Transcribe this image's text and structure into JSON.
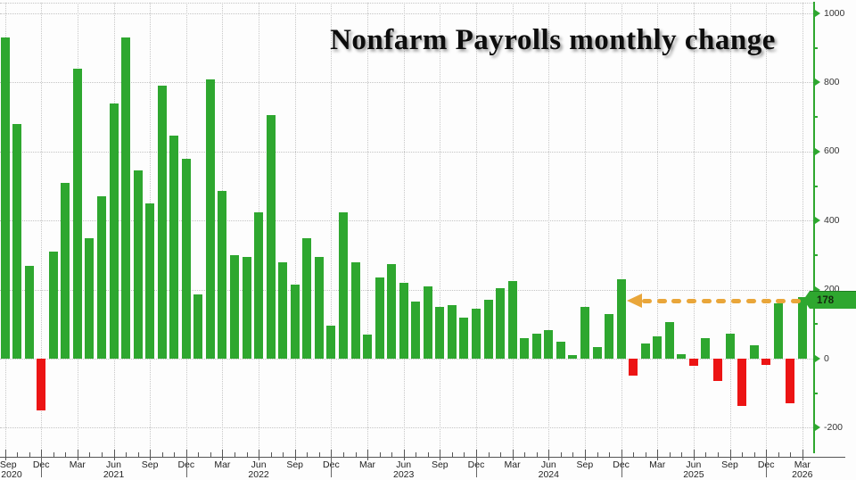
{
  "title": "Nonfarm Payrolls monthly change",
  "last_value_label": "178",
  "colors": {
    "bar_positive": "#2ea72f",
    "bar_negative": "#ec1414",
    "arrow": "#e9a63a",
    "axis_line_green": "#2ea72f",
    "grid": "#c4c4c4",
    "axis_text": "#333333",
    "baseline": "#555555",
    "flag_bg": "#2ea72f",
    "flag_text": "#14290f",
    "title_color": "#0d0d0d",
    "background": "#fdfdfd"
  },
  "y_axis": {
    "side": "right",
    "major_ticks": [
      {
        "v": 1000,
        "t": "1000"
      },
      {
        "v": 800,
        "t": "800"
      },
      {
        "v": 600,
        "t": "600"
      },
      {
        "v": 400,
        "t": "400"
      },
      {
        "v": 200,
        "t": "200"
      },
      {
        "v": 0,
        "t": "0"
      },
      {
        "v": -200,
        "t": "-200"
      }
    ],
    "minor_ticks": [
      900,
      700,
      500,
      300,
      100,
      -100
    ]
  },
  "x_axis": {
    "quarter_ticks": [
      {
        "m": "Sep",
        "y": "2020"
      },
      {
        "m": "Dec"
      },
      {
        "m": "Mar"
      },
      {
        "m": "Jun",
        "y": "2021"
      },
      {
        "m": "Sep"
      },
      {
        "m": "Dec"
      },
      {
        "m": "Mar"
      },
      {
        "m": "Jun",
        "y": "2022"
      },
      {
        "m": "Sep"
      },
      {
        "m": "Dec"
      },
      {
        "m": "Mar"
      },
      {
        "m": "Jun",
        "y": "2023"
      },
      {
        "m": "Sep"
      },
      {
        "m": "Dec"
      },
      {
        "m": "Mar"
      },
      {
        "m": "Jun",
        "y": "2024"
      },
      {
        "m": "Sep"
      },
      {
        "m": "Dec"
      },
      {
        "m": "Mar"
      },
      {
        "m": "Jun",
        "y": "2025"
      },
      {
        "m": "Sep"
      },
      {
        "m": "Dec"
      },
      {
        "m": "Mar",
        "y": "2026"
      }
    ]
  },
  "chart_data": {
    "type": "bar",
    "title": "Nonfarm Payrolls monthly change",
    "xlabel": "",
    "ylabel": "",
    "ylim": [
      -284,
      1040
    ],
    "grid": "dotted",
    "x": [
      "Sep 2020",
      "Oct 2020",
      "Nov 2020",
      "Dec 2020",
      "Jan 2021",
      "Feb 2021",
      "Mar 2021",
      "Apr 2021",
      "May 2021",
      "Jun 2021",
      "Jul 2021",
      "Aug 2021",
      "Sep 2021",
      "Oct 2021",
      "Nov 2021",
      "Dec 2021",
      "Jan 2022",
      "Feb 2022",
      "Mar 2022",
      "Apr 2022",
      "May 2022",
      "Jun 2022",
      "Jul 2022",
      "Aug 2022",
      "Sep 2022",
      "Oct 2022",
      "Nov 2022",
      "Dec 2022",
      "Jan 2023",
      "Feb 2023",
      "Mar 2023",
      "Apr 2023",
      "May 2023",
      "Jun 2023",
      "Jul 2023",
      "Aug 2023",
      "Sep 2023",
      "Oct 2023",
      "Nov 2023",
      "Dec 2023",
      "Jan 2024",
      "Feb 2024",
      "Mar 2024",
      "Apr 2024",
      "May 2024",
      "Jun 2024",
      "Jul 2024",
      "Aug 2024",
      "Sep 2024",
      "Oct 2024",
      "Nov 2024",
      "Dec 2024",
      "Jan 2025",
      "Feb 2025",
      "Mar 2025",
      "Apr 2025",
      "May 2025",
      "Jun 2025",
      "Jul 2025",
      "Aug 2025",
      "Sep 2025",
      "Oct 2025",
      "Nov 2025",
      "Dec 2025",
      "Jan 2026",
      "Feb 2026",
      "Mar 2026"
    ],
    "values": [
      930,
      680,
      270,
      -150,
      310,
      510,
      840,
      350,
      470,
      740,
      930,
      545,
      450,
      790,
      645,
      580,
      185,
      810,
      485,
      300,
      295,
      425,
      705,
      280,
      215,
      350,
      295,
      95,
      425,
      280,
      70,
      235,
      275,
      220,
      165,
      210,
      150,
      155,
      120,
      145,
      170,
      205,
      225,
      60,
      72,
      83,
      49,
      10,
      150,
      34,
      130,
      230,
      -50,
      45,
      65,
      105,
      13,
      -20,
      60,
      -65,
      72,
      -138,
      40,
      -18,
      160,
      -130,
      178
    ],
    "annotation": {
      "value": 178,
      "label": "178",
      "arrow_style": "dashed",
      "arrow_direction": "left",
      "arrow_color": "#e9a63a"
    },
    "legend": null
  }
}
